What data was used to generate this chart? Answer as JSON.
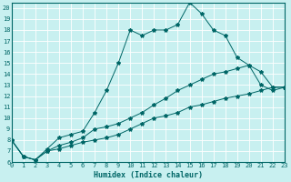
{
  "title": "",
  "xlabel": "Humidex (Indice chaleur)",
  "bg_color": "#c8f0f0",
  "line_color": "#006666",
  "xlim": [
    0,
    23
  ],
  "ylim": [
    6,
    20.5
  ],
  "yticks": [
    6,
    7,
    8,
    9,
    10,
    11,
    12,
    13,
    14,
    15,
    16,
    17,
    18,
    19,
    20
  ],
  "xticks": [
    0,
    1,
    2,
    3,
    4,
    5,
    6,
    7,
    8,
    9,
    10,
    11,
    12,
    13,
    14,
    15,
    16,
    17,
    18,
    19,
    20,
    21,
    22,
    23
  ],
  "line1_x": [
    0,
    1,
    2,
    3,
    4,
    5,
    6,
    7,
    8,
    9,
    10,
    11,
    12,
    13,
    14,
    15,
    16,
    17,
    18,
    19,
    20,
    21,
    22,
    23
  ],
  "line1_y": [
    8.0,
    6.5,
    6.2,
    7.2,
    8.2,
    8.5,
    8.8,
    10.5,
    12.5,
    15.0,
    18.0,
    17.5,
    18.0,
    18.0,
    18.5,
    20.5,
    19.5,
    18.0,
    17.5,
    15.5,
    14.8,
    14.2,
    12.8,
    12.8
  ],
  "line2_x": [
    0,
    1,
    2,
    3,
    4,
    5,
    6,
    7,
    8,
    9,
    10,
    11,
    12,
    13,
    14,
    15,
    16,
    17,
    18,
    19,
    20,
    21,
    22,
    23
  ],
  "line2_y": [
    8.0,
    6.5,
    6.2,
    7.0,
    7.5,
    7.8,
    8.2,
    9.0,
    9.2,
    9.5,
    10.0,
    10.5,
    11.2,
    11.8,
    12.5,
    13.0,
    13.5,
    14.0,
    14.2,
    14.5,
    14.8,
    13.0,
    12.5,
    12.8
  ],
  "line3_x": [
    0,
    1,
    2,
    3,
    4,
    5,
    6,
    7,
    8,
    9,
    10,
    11,
    12,
    13,
    14,
    15,
    16,
    17,
    18,
    19,
    20,
    21,
    22,
    23
  ],
  "line3_y": [
    8.0,
    6.5,
    6.2,
    7.0,
    7.2,
    7.5,
    7.8,
    8.0,
    8.2,
    8.5,
    9.0,
    9.5,
    10.0,
    10.2,
    10.5,
    11.0,
    11.2,
    11.5,
    11.8,
    12.0,
    12.2,
    12.5,
    12.8,
    12.8
  ],
  "tick_fontsize": 5,
  "xlabel_fontsize": 6,
  "marker_size": 3
}
